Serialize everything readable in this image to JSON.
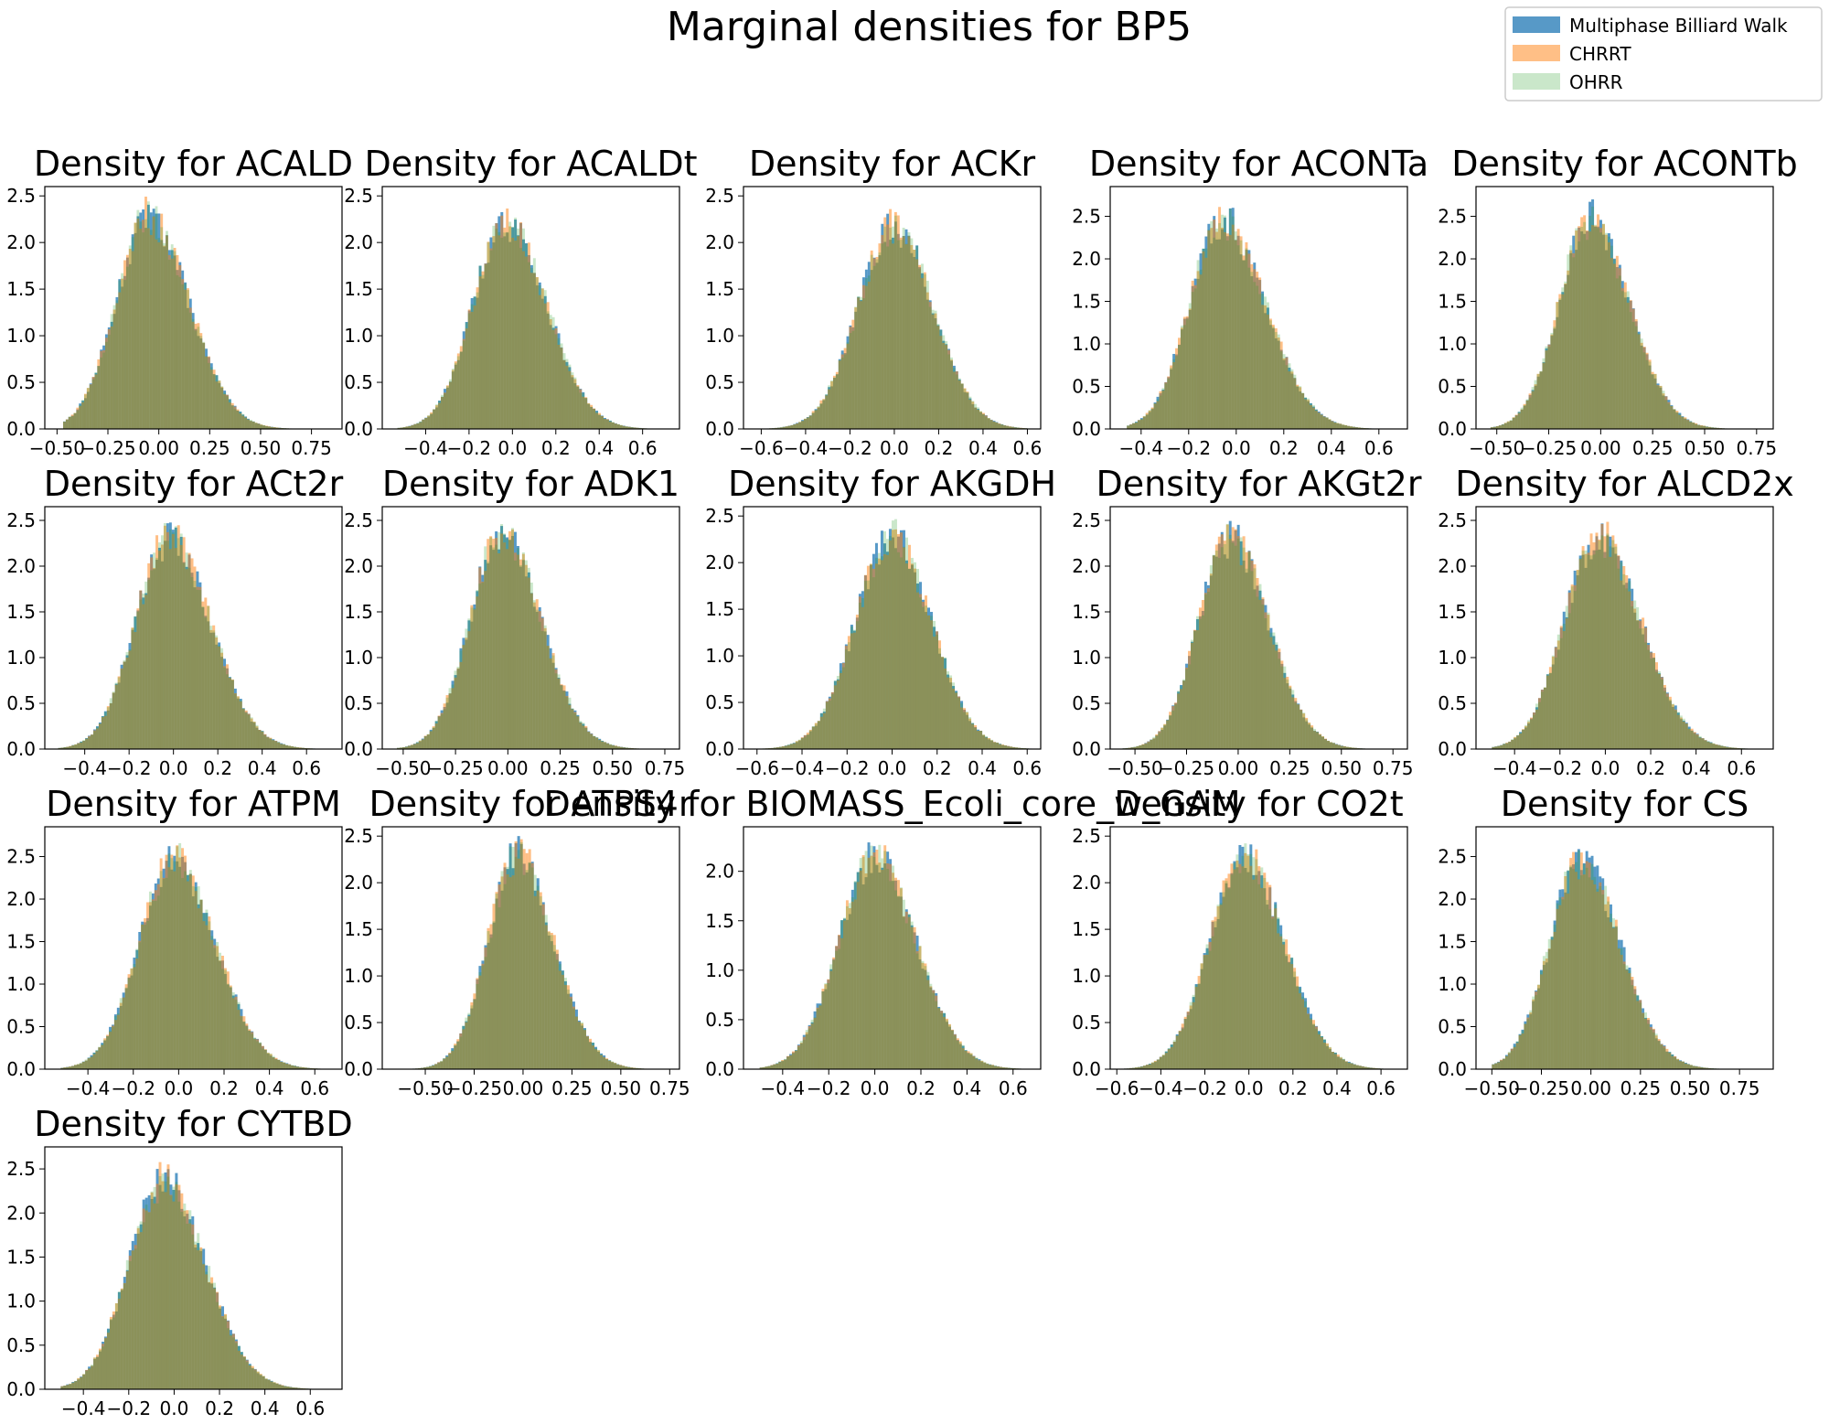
{
  "suptitle": "Marginal densities for BP5",
  "legend": {
    "placement": "top-right",
    "items": [
      {
        "label": "Multiphase Billiard Walk",
        "color": "#1f77b4",
        "opacity": 0.75
      },
      {
        "label": "CHRRT",
        "color": "#ff7f0e",
        "opacity": 0.5
      },
      {
        "label": "OHRR",
        "color": "#2ca02c",
        "opacity": 0.25
      }
    ]
  },
  "chart_data": [
    {
      "type": "histogram",
      "title": "Density for ACALD",
      "xlim": [
        -0.56,
        0.9
      ],
      "ylim": [
        0,
        2.6
      ],
      "xticks": [
        -0.5,
        -0.25,
        0,
        0.25,
        0.5,
        0.75
      ],
      "xtick_labels": [
        "−0.50",
        "−0.25",
        "0.00",
        "0.25",
        "0.50",
        "0.75"
      ],
      "yticks": [
        0,
        0.5,
        1,
        1.5,
        2,
        2.5
      ],
      "ytick_labels": [
        "0.0",
        "0.5",
        "1.0",
        "1.5",
        "2.0",
        "2.5"
      ],
      "peak_x": -0.05,
      "peak_y": 2.5,
      "spread": 0.18,
      "skew": 0.3,
      "range": [
        -0.47,
        0.82
      ]
    },
    {
      "type": "histogram",
      "title": "Density for ACALDt",
      "xlim": [
        -0.6,
        0.77
      ],
      "ylim": [
        0,
        2.6
      ],
      "xticks": [
        -0.4,
        -0.2,
        0,
        0.2,
        0.4,
        0.6
      ],
      "xtick_labels": [
        "−0.4",
        "−0.2",
        "0.0",
        "0.2",
        "0.4",
        "0.6"
      ],
      "yticks": [
        0,
        0.5,
        1,
        1.5,
        2,
        2.5
      ],
      "ytick_labels": [
        "0.0",
        "0.5",
        "1.0",
        "1.5",
        "2.0",
        "2.5"
      ],
      "peak_x": -0.03,
      "peak_y": 2.45,
      "spread": 0.17,
      "skew": 0.3,
      "range": [
        -0.53,
        0.72
      ]
    },
    {
      "type": "histogram",
      "title": "Density for ACKr",
      "xlim": [
        -0.68,
        0.66
      ],
      "ylim": [
        0,
        2.6
      ],
      "xticks": [
        -0.6,
        -0.4,
        -0.2,
        0,
        0.2,
        0.4,
        0.6
      ],
      "xtick_labels": [
        "−0.6",
        "−0.4",
        "−0.2",
        "0.0",
        "0.2",
        "0.4",
        "0.6"
      ],
      "yticks": [
        0,
        0.5,
        1,
        1.5,
        2,
        2.5
      ],
      "ytick_labels": [
        "0.0",
        "0.5",
        "1.0",
        "1.5",
        "2.0",
        "2.5"
      ],
      "peak_x": 0.0,
      "peak_y": 2.4,
      "spread": 0.17,
      "skew": 0.1,
      "range": [
        -0.6,
        0.6
      ]
    },
    {
      "type": "histogram",
      "title": "Density for ACONTa",
      "xlim": [
        -0.53,
        0.72
      ],
      "ylim": [
        0,
        2.85
      ],
      "xticks": [
        -0.4,
        -0.2,
        0,
        0.2,
        0.4,
        0.6
      ],
      "xtick_labels": [
        "−0.4",
        "−0.2",
        "0.0",
        "0.2",
        "0.4",
        "0.6"
      ],
      "yticks": [
        0,
        0.5,
        1,
        1.5,
        2,
        2.5
      ],
      "ytick_labels": [
        "0.0",
        "0.5",
        "1.0",
        "1.5",
        "2.0",
        "2.5"
      ],
      "peak_x": -0.06,
      "peak_y": 2.7,
      "spread": 0.16,
      "skew": 0.4,
      "range": [
        -0.46,
        0.67
      ]
    },
    {
      "type": "histogram",
      "title": "Density for ACONTb",
      "xlim": [
        -0.6,
        0.83
      ],
      "ylim": [
        0,
        2.85
      ],
      "xticks": [
        -0.5,
        -0.25,
        0,
        0.25,
        0.5,
        0.75
      ],
      "xtick_labels": [
        "−0.50",
        "−0.25",
        "0.00",
        "0.25",
        "0.50",
        "0.75"
      ],
      "yticks": [
        0,
        0.5,
        1,
        1.5,
        2,
        2.5
      ],
      "ytick_labels": [
        "0.0",
        "0.5",
        "1.0",
        "1.5",
        "2.0",
        "2.5"
      ],
      "peak_x": -0.05,
      "peak_y": 2.7,
      "spread": 0.17,
      "skew": 0.3,
      "range": [
        -0.53,
        0.78
      ]
    },
    {
      "type": "histogram",
      "title": "Density for ACt2r",
      "xlim": [
        -0.58,
        0.76
      ],
      "ylim": [
        0,
        2.65
      ],
      "xticks": [
        -0.4,
        -0.2,
        0,
        0.2,
        0.4,
        0.6
      ],
      "xtick_labels": [
        "−0.4",
        "−0.2",
        "0.0",
        "0.2",
        "0.4",
        "0.6"
      ],
      "yticks": [
        0,
        0.5,
        1,
        1.5,
        2,
        2.5
      ],
      "ytick_labels": [
        "0.0",
        "0.5",
        "1.0",
        "1.5",
        "2.0",
        "2.5"
      ],
      "peak_x": -0.02,
      "peak_y": 2.55,
      "spread": 0.17,
      "skew": 0.3,
      "range": [
        -0.52,
        0.7
      ]
    },
    {
      "type": "histogram",
      "title": "Density for ADK1",
      "xlim": [
        -0.6,
        0.82
      ],
      "ylim": [
        0,
        2.65
      ],
      "xticks": [
        -0.5,
        -0.25,
        0,
        0.25,
        0.5,
        0.75
      ],
      "xtick_labels": [
        "−0.50",
        "−0.25",
        "0.00",
        "0.25",
        "0.50",
        "0.75"
      ],
      "yticks": [
        0,
        0.5,
        1,
        1.5,
        2,
        2.5
      ],
      "ytick_labels": [
        "0.0",
        "0.5",
        "1.0",
        "1.5",
        "2.0",
        "2.5"
      ],
      "peak_x": -0.03,
      "peak_y": 2.6,
      "spread": 0.17,
      "skew": 0.3,
      "range": [
        -0.53,
        0.77
      ]
    },
    {
      "type": "histogram",
      "title": "Density for AKGDH",
      "xlim": [
        -0.66,
        0.66
      ],
      "ylim": [
        0,
        2.6
      ],
      "xticks": [
        -0.6,
        -0.4,
        -0.2,
        0,
        0.2,
        0.4,
        0.6
      ],
      "xtick_labels": [
        "−0.6",
        "−0.4",
        "−0.2",
        "0.0",
        "0.2",
        "0.4",
        "0.6"
      ],
      "yticks": [
        0,
        0.5,
        1,
        1.5,
        2,
        2.5
      ],
      "ytick_labels": [
        "0.0",
        "0.5",
        "1.0",
        "1.5",
        "2.0",
        "2.5"
      ],
      "peak_x": 0.0,
      "peak_y": 2.5,
      "spread": 0.17,
      "skew": 0.1,
      "range": [
        -0.6,
        0.62
      ]
    },
    {
      "type": "histogram",
      "title": "Density for AKGt2r",
      "xlim": [
        -0.62,
        0.82
      ],
      "ylim": [
        0,
        2.65
      ],
      "xticks": [
        -0.5,
        -0.25,
        0,
        0.25,
        0.5,
        0.75
      ],
      "xtick_labels": [
        "−0.50",
        "−0.25",
        "0.00",
        "0.25",
        "0.50",
        "0.75"
      ],
      "yticks": [
        0,
        0.5,
        1,
        1.5,
        2,
        2.5
      ],
      "ytick_labels": [
        "0.0",
        "0.5",
        "1.0",
        "1.5",
        "2.0",
        "2.5"
      ],
      "peak_x": -0.04,
      "peak_y": 2.55,
      "spread": 0.17,
      "skew": 0.3,
      "range": [
        -0.56,
        0.76
      ]
    },
    {
      "type": "histogram",
      "title": "Density for ALCD2x",
      "xlim": [
        -0.57,
        0.74
      ],
      "ylim": [
        0,
        2.65
      ],
      "xticks": [
        -0.4,
        -0.2,
        0,
        0.2,
        0.4,
        0.6
      ],
      "xtick_labels": [
        "−0.4",
        "−0.2",
        "0.0",
        "0.2",
        "0.4",
        "0.6"
      ],
      "yticks": [
        0,
        0.5,
        1,
        1.5,
        2,
        2.5
      ],
      "ytick_labels": [
        "0.0",
        "0.5",
        "1.0",
        "1.5",
        "2.0",
        "2.5"
      ],
      "peak_x": -0.03,
      "peak_y": 2.55,
      "spread": 0.17,
      "skew": 0.3,
      "range": [
        -0.5,
        0.7
      ]
    },
    {
      "type": "histogram",
      "title": "Density for ATPM",
      "xlim": [
        -0.59,
        0.72
      ],
      "ylim": [
        0,
        2.85
      ],
      "xticks": [
        -0.4,
        -0.2,
        0,
        0.2,
        0.4,
        0.6
      ],
      "xtick_labels": [
        "−0.4",
        "−0.2",
        "0.0",
        "0.2",
        "0.4",
        "0.6"
      ],
      "yticks": [
        0,
        0.5,
        1,
        1.5,
        2,
        2.5
      ],
      "ytick_labels": [
        "0.0",
        "0.5",
        "1.0",
        "1.5",
        "2.0",
        "2.5"
      ],
      "peak_x": -0.02,
      "peak_y": 2.7,
      "spread": 0.17,
      "skew": 0.25,
      "range": [
        -0.52,
        0.66
      ]
    },
    {
      "type": "histogram",
      "title": "Density for ATPS4r",
      "xlim": [
        -0.72,
        0.8
      ],
      "ylim": [
        0,
        2.6
      ],
      "xticks": [
        -0.5,
        -0.25,
        0,
        0.25,
        0.5,
        0.75
      ],
      "xtick_labels": [
        "−0.50",
        "−0.25",
        "0.00",
        "0.25",
        "0.50",
        "0.75"
      ],
      "yticks": [
        0,
        0.5,
        1,
        1.5,
        2,
        2.5
      ],
      "ytick_labels": [
        "0.0",
        "0.5",
        "1.0",
        "1.5",
        "2.0",
        "2.5"
      ],
      "peak_x": -0.03,
      "peak_y": 2.5,
      "spread": 0.17,
      "skew": 0.3,
      "range": [
        -0.65,
        0.76
      ]
    },
    {
      "type": "histogram",
      "title": "Density for BIOMASS_Ecoli_core_w_GAM",
      "xlim": [
        -0.57,
        0.72
      ],
      "ylim": [
        0,
        2.45
      ],
      "xticks": [
        -0.4,
        -0.2,
        0,
        0.2,
        0.4,
        0.6
      ],
      "xtick_labels": [
        "−0.4",
        "−0.2",
        "0.0",
        "0.2",
        "0.4",
        "0.6"
      ],
      "yticks": [
        0,
        0.5,
        1,
        1.5,
        2
      ],
      "ytick_labels": [
        "0.0",
        "0.5",
        "1.0",
        "1.5",
        "2.0"
      ],
      "peak_x": 0.0,
      "peak_y": 2.35,
      "spread": 0.17,
      "skew": 0.2,
      "range": [
        -0.5,
        0.67
      ]
    },
    {
      "type": "histogram",
      "title": "Density for CO2t",
      "xlim": [
        -0.63,
        0.72
      ],
      "ylim": [
        0,
        2.6
      ],
      "xticks": [
        -0.6,
        -0.4,
        -0.2,
        0,
        0.2,
        0.4,
        0.6
      ],
      "xtick_labels": [
        "−0.6",
        "−0.4",
        "−0.2",
        "0.0",
        "0.2",
        "0.4",
        "0.6"
      ],
      "yticks": [
        0,
        0.5,
        1,
        1.5,
        2,
        2.5
      ],
      "ytick_labels": [
        "0.0",
        "0.5",
        "1.0",
        "1.5",
        "2.0",
        "2.5"
      ],
      "peak_x": -0.02,
      "peak_y": 2.5,
      "spread": 0.17,
      "skew": 0.2,
      "range": [
        -0.58,
        0.66
      ]
    },
    {
      "type": "histogram",
      "title": "Density for CS",
      "xlim": [
        -0.58,
        0.92
      ],
      "ylim": [
        0,
        2.85
      ],
      "xticks": [
        -0.5,
        -0.25,
        0,
        0.25,
        0.5,
        0.75
      ],
      "xtick_labels": [
        "−0.50",
        "−0.25",
        "0.00",
        "0.25",
        "0.50",
        "0.75"
      ],
      "yticks": [
        0,
        0.5,
        1,
        1.5,
        2,
        2.5
      ],
      "ytick_labels": [
        "0.0",
        "0.5",
        "1.0",
        "1.5",
        "2.0",
        "2.5"
      ],
      "peak_x": -0.05,
      "peak_y": 2.7,
      "spread": 0.18,
      "skew": 0.3,
      "range": [
        -0.5,
        0.85
      ]
    },
    {
      "type": "histogram",
      "title": "Density for CYTBD",
      "xlim": [
        -0.57,
        0.74
      ],
      "ylim": [
        0,
        2.75
      ],
      "xticks": [
        -0.4,
        -0.2,
        0,
        0.2,
        0.4,
        0.6
      ],
      "xtick_labels": [
        "−0.4",
        "−0.2",
        "0.0",
        "0.2",
        "0.4",
        "0.6"
      ],
      "yticks": [
        0,
        0.5,
        1,
        1.5,
        2,
        2.5
      ],
      "ytick_labels": [
        "0.0",
        "0.5",
        "1.0",
        "1.5",
        "2.0",
        "2.5"
      ],
      "peak_x": -0.05,
      "peak_y": 2.6,
      "spread": 0.17,
      "skew": 0.3,
      "range": [
        -0.5,
        0.7
      ]
    }
  ]
}
